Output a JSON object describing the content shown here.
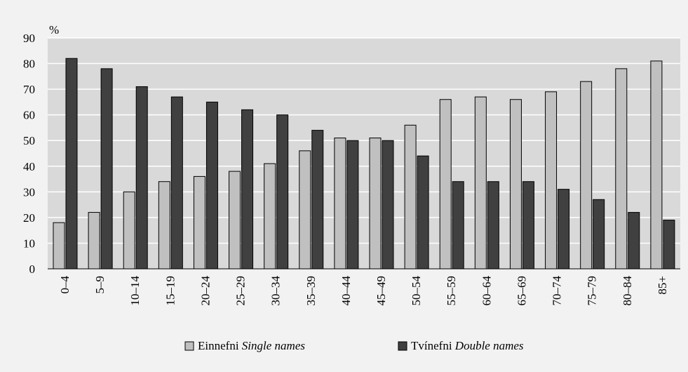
{
  "chart_data": {
    "type": "bar",
    "ylabel": "%",
    "ylim": [
      0,
      90
    ],
    "yticks": [
      0,
      10,
      20,
      30,
      40,
      50,
      60,
      70,
      80,
      90
    ],
    "grid": true,
    "legend_position": "bottom",
    "categories": [
      "0–4",
      "5–9",
      "10–14",
      "15–19",
      "20–24",
      "25–29",
      "30–34",
      "35–39",
      "40–44",
      "45–49",
      "50–54",
      "55–59",
      "60–64",
      "65–69",
      "70–74",
      "75–79",
      "80–84",
      "85+"
    ],
    "series": [
      {
        "name": "Einnefni",
        "name_en": "Single names",
        "color": "#c0c0c0",
        "values": [
          18,
          22,
          30,
          34,
          36,
          38,
          41,
          46,
          51,
          51,
          56,
          66,
          67,
          66,
          69,
          73,
          78,
          81
        ]
      },
      {
        "name": "Tvínefni",
        "name_en": "Double names",
        "color": "#404040",
        "values": [
          82,
          78,
          71,
          67,
          65,
          62,
          60,
          54,
          50,
          50,
          44,
          34,
          34,
          34,
          31,
          27,
          22,
          19
        ]
      }
    ]
  }
}
